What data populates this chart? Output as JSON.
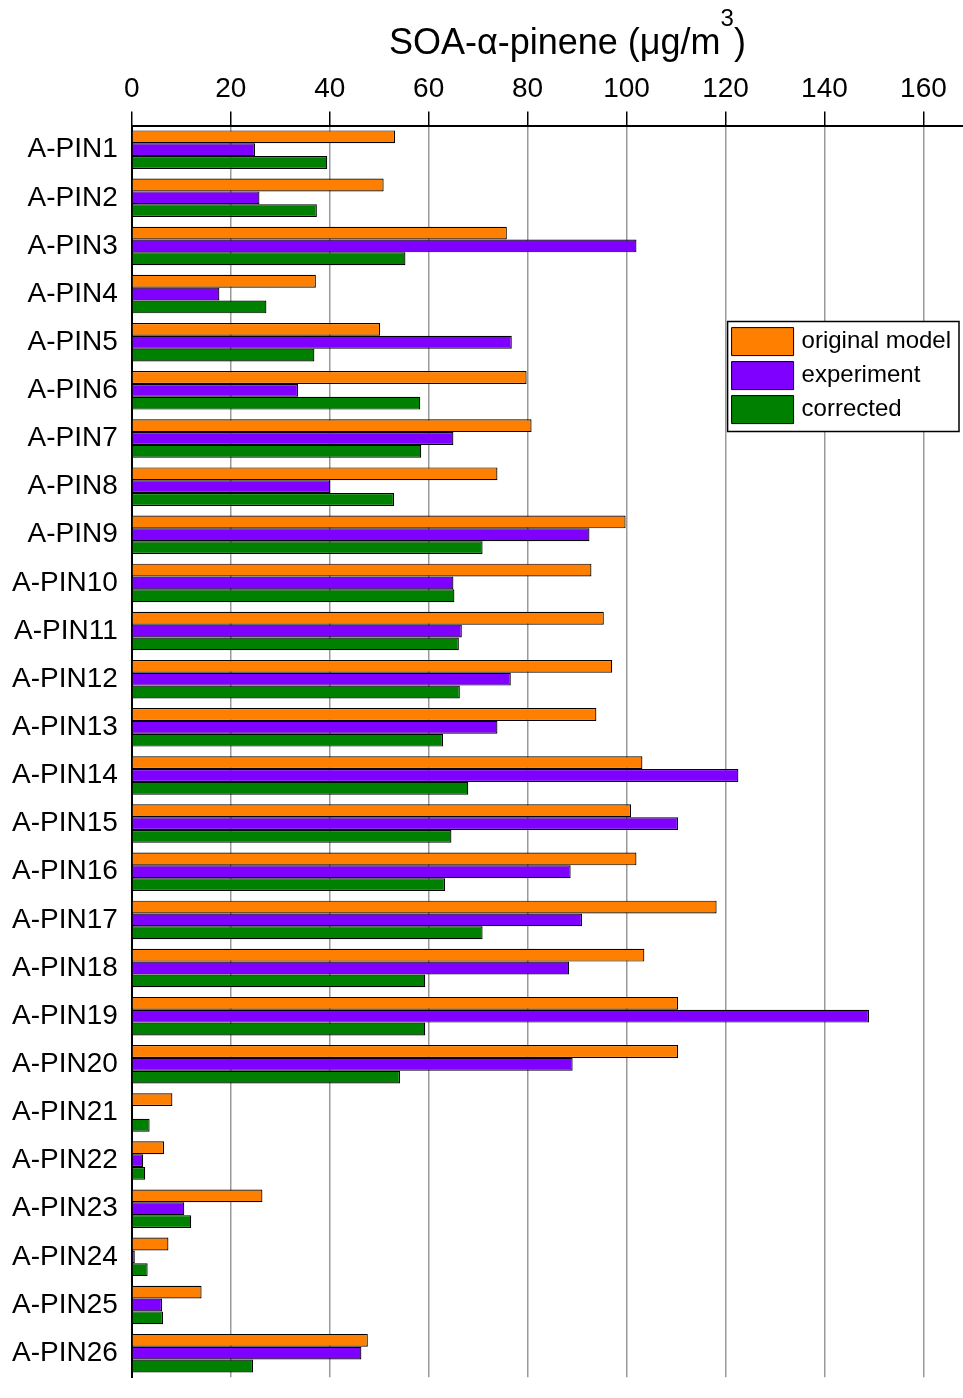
{
  "chart_data": {
    "type": "bar",
    "orientation": "horizontal",
    "xlabel": "SOA-α-pinene (μg/m$^{3}$)",
    "categories": [
      "A-PIN1",
      "A-PIN2",
      "A-PIN3",
      "A-PIN4",
      "A-PIN5",
      "A-PIN6",
      "A-PIN7",
      "A-PIN8",
      "A-PIN9",
      "A-PIN10",
      "A-PIN11",
      "A-PIN12",
      "A-PIN13",
      "A-PIN14",
      "A-PIN15",
      "A-PIN16",
      "A-PIN17",
      "A-PIN18",
      "A-PIN19",
      "A-PIN20",
      "A-PIN21",
      "A-PIN22",
      "A-PIN23",
      "A-PIN24",
      "A-PIN25",
      "A-PIN26"
    ],
    "series": [
      {
        "name": "original model",
        "color": "#ff8000",
        "values": [
          53.2,
          50.9,
          75.8,
          37.2,
          50.2,
          79.8,
          80.8,
          73.9,
          99.8,
          92.9,
          95.4,
          97.1,
          93.9,
          103.2,
          100.9,
          102,
          118.2,
          103.6,
          110.4,
          110.4,
          8.2,
          6.5,
          26.4,
          7.4,
          14.1,
          47.7
        ]
      },
      {
        "name": "experiment",
        "color": "#8000ff",
        "values": [
          24.9,
          25.8,
          102,
          17.7,
          76.8,
          33.6,
          65,
          40.1,
          92.5,
          65,
          66.7,
          76.6,
          73.9,
          122.6,
          110.4,
          88.7,
          91,
          88.4,
          149,
          89.1,
          0,
          2.3,
          10.6,
          0.6,
          6.1,
          46.4
        ]
      },
      {
        "name": "corrected",
        "color": "#008000",
        "values": [
          39.5,
          37.4,
          55.3,
          27.2,
          36.9,
          58.3,
          58.5,
          53,
          70.9,
          65.2,
          66.1,
          66.3,
          62.9,
          68,
          64.6,
          63.3,
          70.9,
          59.3,
          59.3,
          54.2,
          3.6,
          2.7,
          12,
          3.2,
          6.3,
          24.5
        ]
      }
    ],
    "xlim": [
      0,
      168
    ],
    "xticks": [
      0,
      20,
      40,
      60,
      80,
      100,
      120,
      140,
      160
    ],
    "grid": "x",
    "legend": "top right"
  }
}
